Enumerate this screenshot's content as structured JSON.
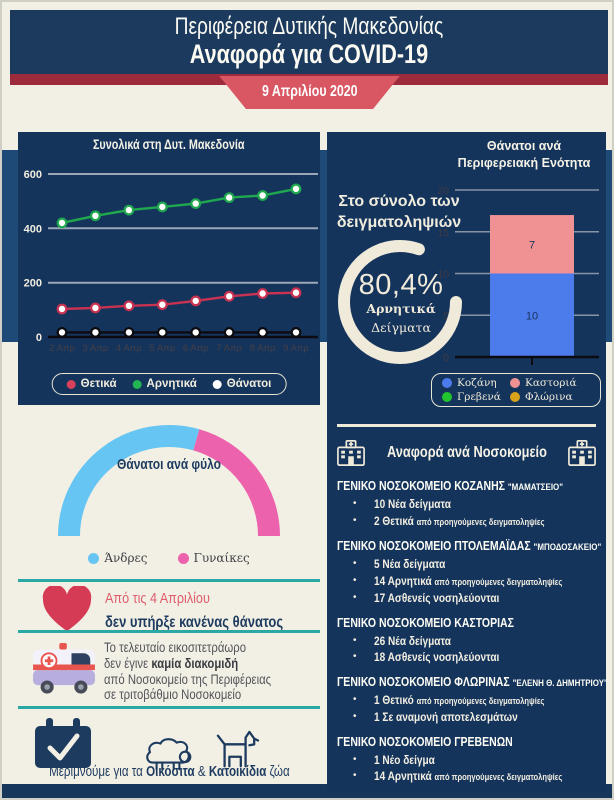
{
  "header": {
    "region": "Περιφέρεια Δυτικής Μακεδονίας",
    "report": "Αναφορά για COVID-19",
    "date": "9 Απριλίου 2020"
  },
  "colors": {
    "navy_panel": "#15345c",
    "navy_header": "#1b3a5e",
    "band_blue": "#1e4a78",
    "maroon_stripe": "#9e2b3c",
    "badge_red": "#d85763",
    "cream": "#efead9",
    "teal_divider": "#2aa9a4",
    "heart_red": "#d63b56"
  },
  "icons": {
    "heart": "heart-icon",
    "ambulance": "ambulance-icon",
    "calendar-check": "calendar-check-icon",
    "sheep": "sheep-icon",
    "dog": "dog-icon",
    "hospital": "hospital-icon"
  },
  "samples_intro": "Στο σύνολο των δειγματοληψιών",
  "chart_data": [
    {
      "type": "line",
      "title": "Συνολικά στη Δυτ. Μακεδονία",
      "x": [
        "2 Απρ",
        "3 Απρ",
        "4 Απρ",
        "5 Απρ",
        "6 Απρ",
        "7 Απρ",
        "8 Απρ",
        "9 Απρ"
      ],
      "series": [
        {
          "name": "Θετικά",
          "color": "#c93250",
          "legend_color": "#d8415b",
          "values": [
            103,
            107,
            115,
            119,
            133,
            150,
            160,
            163
          ]
        },
        {
          "name": "Αρνητικά",
          "color": "#1fa84e",
          "legend_color": "#21b553",
          "values": [
            420,
            446,
            467,
            479,
            491,
            513,
            521,
            545
          ]
        },
        {
          "name": "Θάνατοι",
          "color": "#0b0b10",
          "legend_color": "#ffffff",
          "values": [
            17,
            17,
            17,
            17,
            17,
            17,
            17,
            17
          ]
        }
      ],
      "ylim": [
        0,
        650
      ],
      "yticks": [
        0,
        200,
        400,
        600
      ],
      "grid": true,
      "legend_position": "bottom"
    },
    {
      "type": "bar",
      "stacked": true,
      "title": "Θάνατοι ανά Περιφερειακή Ενότητα",
      "categories": [
        ""
      ],
      "series": [
        {
          "name": "Κοζάνη",
          "color": "#4c7bec",
          "value": 10
        },
        {
          "name": "Καστοριά",
          "color": "#f09193",
          "value": 7
        },
        {
          "name": "Γρεβενά",
          "color": "#21c32f",
          "value": 0
        },
        {
          "name": "Φλώρινα",
          "color": "#d9a21b",
          "value": 0
        }
      ],
      "ylim": [
        0,
        20
      ],
      "yticks": [
        0,
        5,
        10,
        15,
        20
      ],
      "legend_position": "bottom"
    },
    {
      "type": "donut",
      "value": 80.4,
      "label": "80,4%",
      "sublabel_line1": "Αρνητικά",
      "sublabel_line2": "Δείγματα",
      "ring_color": "#efead9"
    },
    {
      "type": "gauge",
      "title": "Θάνατοι ανά φύλο",
      "segments": [
        {
          "name": "Άνδρες",
          "color": "#66c5f2",
          "pct": 58.8
        },
        {
          "name": "Γυναίκες",
          "color": "#ec62ad",
          "pct": 41.2
        }
      ]
    }
  ],
  "facts": {
    "no_death": {
      "lead": "Από τις 4 Απριλίου",
      "main": "δεν υπήρξε κανένας θάνατος"
    },
    "transfer": {
      "line1": "Το τελευταίο εικοσιτετράωρο",
      "line2_pre": "δεν έγινε ",
      "line2_bold": "καμία διακομιδή",
      "line3": "από Νοσοκομείο της Περιφέρειας",
      "line4": "σε τριτοβάθμιο Νοσοκομείο"
    },
    "animals": {
      "pre": "Μεριμνούμε για τα ",
      "bold1": "Οικόσιτα",
      "mid": " & ",
      "bold2": "Κατοικίδια",
      "post": " ζώα"
    }
  },
  "hospitals": {
    "header": "Αναφορά ανά Νοσοκομείο",
    "entries": [
      {
        "name": "ΓΕΝΙΚΟ ΝΟΣΟΚΟΜΕΙΟ ΚΟΖΑΝΗΣ",
        "annex": "\"ΜΑΜΑΤΣΕΙΟ\"",
        "bullets": [
          {
            "t": "10 Νέα δείγματα",
            "s": ""
          },
          {
            "t": "2 Θετικά",
            "s": "από προηγούμενες δειγματοληψίες"
          }
        ]
      },
      {
        "name": "ΓΕΝΙΚΟ ΝΟΣΟΚΟΜΕΙΟ ΠΤΟΛΕΜΑΪΔΑΣ",
        "annex": "\"ΜΠΟΔΟΣΑΚΕΙΟ\"",
        "bullets": [
          {
            "t": "5 Νέα δείγματα",
            "s": ""
          },
          {
            "t": "14 Αρνητικά",
            "s": "από προηγούμενες δειγματοληψίες"
          },
          {
            "t": "17 Ασθενείς νοσηλεύονται",
            "s": ""
          }
        ]
      },
      {
        "name": "ΓΕΝΙΚΟ ΝΟΣΟΚΟΜΕΙΟ ΚΑΣΤΟΡΙΑΣ",
        "annex": "",
        "bullets": [
          {
            "t": "26 Νέα δείγματα",
            "s": ""
          },
          {
            "t": "18 Ασθενείς νοσηλεύονται",
            "s": ""
          }
        ]
      },
      {
        "name": "ΓΕΝΙΚΟ ΝΟΣΟΚΟΜΕΙΟ ΦΛΩΡΙΝΑΣ",
        "annex": "\"ΕΛΕΝΗ Θ. ΔΗΜΗΤΡΙΟΥ\"",
        "bullets": [
          {
            "t": "1 Θετικό",
            "s": "από προηγούμενες δειγματοληψίες"
          },
          {
            "t": "1 Σε αναμονή αποτελεσμάτων",
            "s": ""
          }
        ]
      },
      {
        "name": "ΓΕΝΙΚΟ ΝΟΣΟΚΟΜΕΙΟ ΓΡΕΒΕΝΩΝ",
        "annex": "",
        "bullets": [
          {
            "t": "1 Νέο δείγμα",
            "s": ""
          },
          {
            "t": "14 Αρνητικά",
            "s": "από προηγούμενες δειγματοληψίες"
          }
        ]
      }
    ]
  }
}
